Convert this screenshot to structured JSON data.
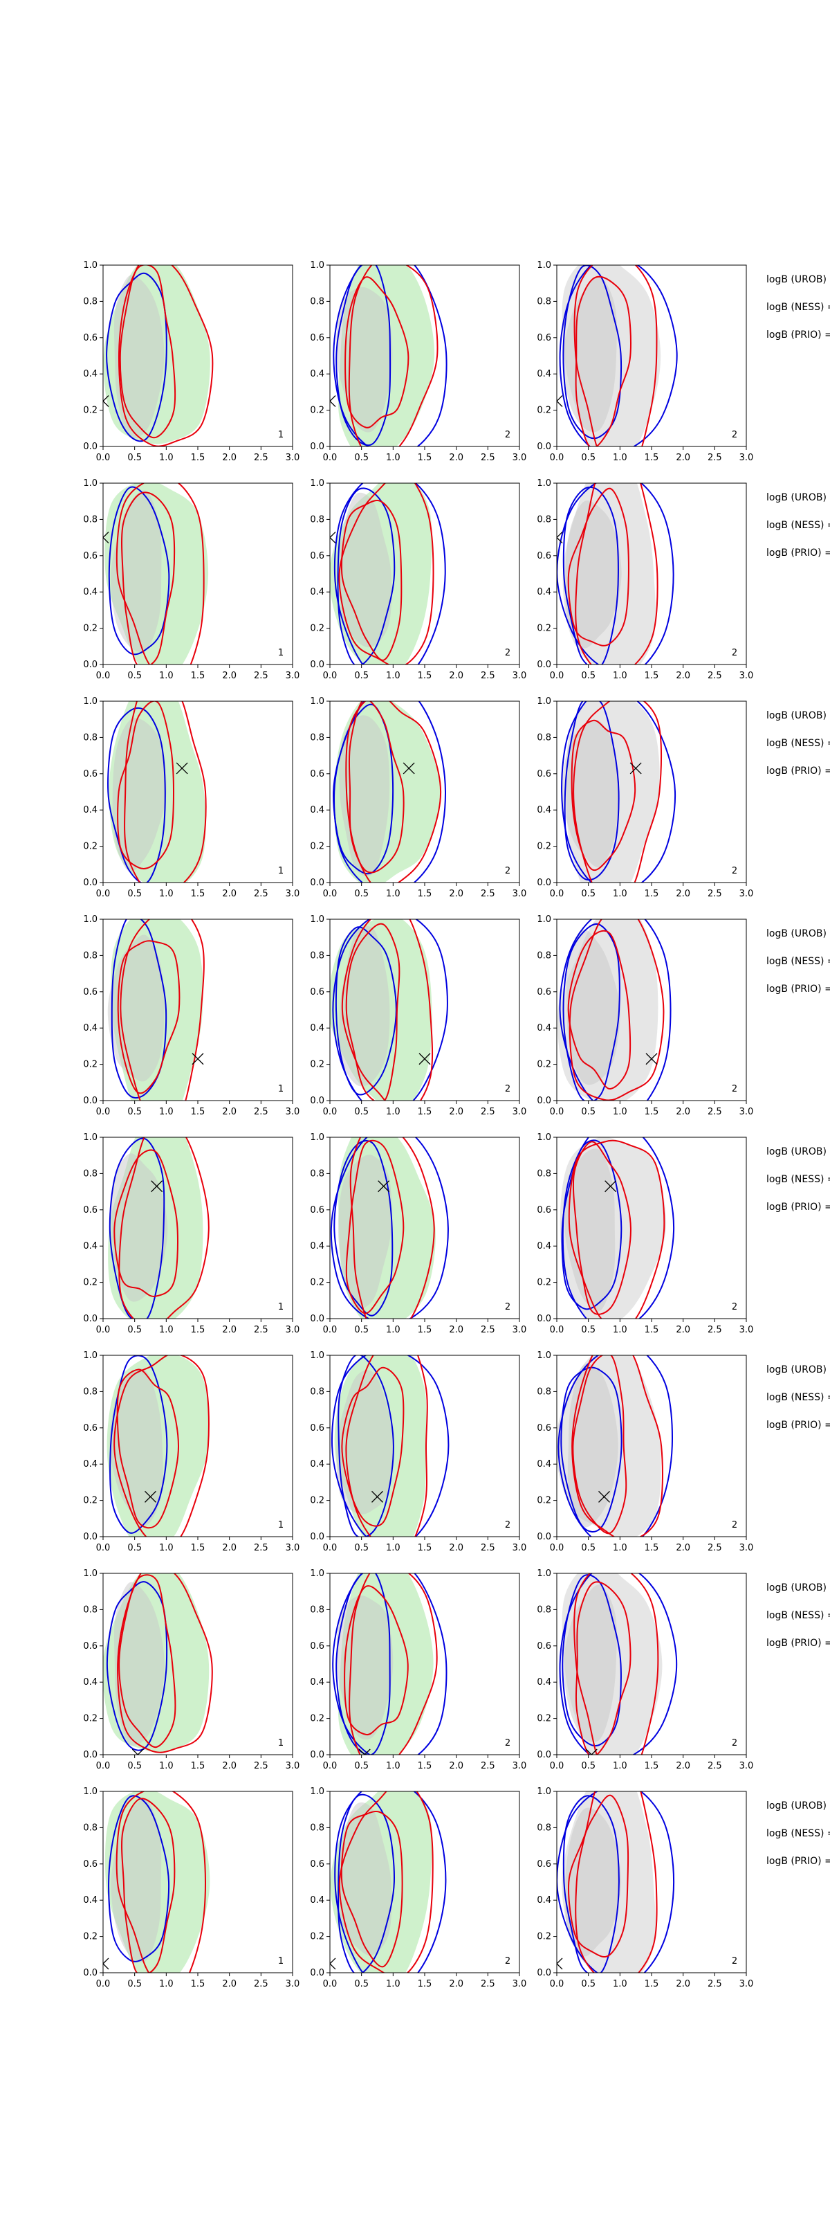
{
  "chart_data": {
    "type": "contour-grid",
    "grid": {
      "rows": 8,
      "cols": 3
    },
    "xlim": [
      0.0,
      3.0
    ],
    "ylim": [
      0.0,
      1.0
    ],
    "x_ticks": [
      "0.0",
      "0.5",
      "1.0",
      "1.5",
      "2.0",
      "2.5",
      "3.0"
    ],
    "y_ticks": [
      "0.0",
      "0.2",
      "0.4",
      "0.6",
      "0.8",
      "1.0"
    ],
    "panel_corner_labels": [
      "1",
      "2",
      "2"
    ],
    "row_texts": [
      "logB (UROB) =",
      "logB (NESS) =",
      "logB (PRIO) ="
    ],
    "colors": {
      "green_fill": "#a8e6a3",
      "grey_fill": "#c8c8c8",
      "red_line": "#e8000b",
      "blue_line": "#0000e0",
      "frame": "#000000"
    },
    "markers": [
      {
        "row": 1,
        "x": 0.0,
        "y": 0.25
      },
      {
        "row": 2,
        "x": 0.0,
        "y": 0.7
      },
      {
        "row": 3,
        "x": 1.25,
        "y": 0.63
      },
      {
        "row": 4,
        "x": 1.5,
        "y": 0.23
      },
      {
        "row": 5,
        "x": 0.85,
        "y": 0.73
      },
      {
        "row": 6,
        "x": 0.75,
        "y": 0.22
      },
      {
        "row": 7,
        "x": 0.55,
        "y": 0.0
      },
      {
        "row": 8,
        "x": 0.0,
        "y": 0.05
      }
    ]
  }
}
